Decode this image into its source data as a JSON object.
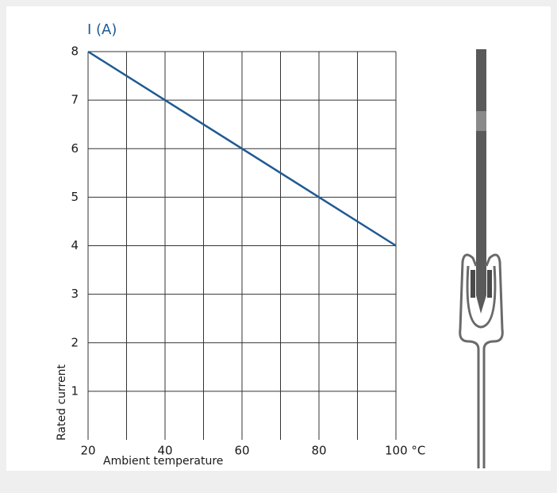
{
  "chart_data": {
    "type": "line",
    "y_axis_title": "I (A)",
    "ylabel": "Rated current",
    "xlabel": "Ambient temperature",
    "x": [
      20,
      100
    ],
    "series": [
      {
        "name": "Rated current",
        "color": "#1f5a93",
        "values": [
          8,
          4
        ]
      }
    ],
    "xlim": [
      20,
      100
    ],
    "xticks": [
      20,
      40,
      60,
      80,
      {
        "value": 100,
        "label": "100 °C"
      }
    ],
    "x_minor_ticks": [
      30,
      50,
      70,
      90
    ],
    "ylim": [
      0,
      8
    ],
    "yticks": [
      1,
      2,
      3,
      4,
      5,
      6,
      7,
      8
    ],
    "grid": true
  }
}
